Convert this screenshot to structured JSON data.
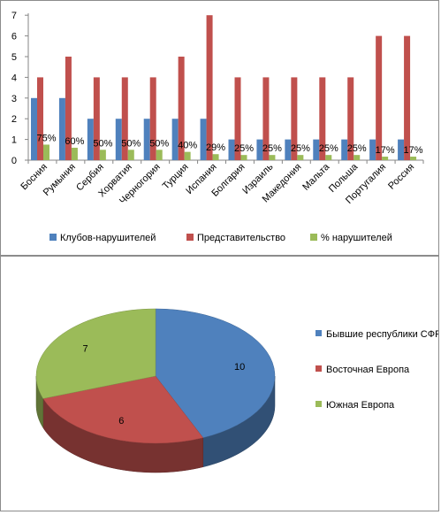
{
  "colors": {
    "clubs": "#4f81bd",
    "representation": "#c0504d",
    "percent": "#9bbb59",
    "pie_former_yu": "#4f81bd",
    "pie_east": "#c0504d",
    "pie_south": "#9bbb59"
  },
  "chart_data": [
    {
      "type": "bar",
      "categories": [
        "Босния",
        "Румыния",
        "Сербия",
        "Хорватия",
        "Черногория",
        "Турция",
        "Испания",
        "Болгария",
        "Израиль",
        "Македония",
        "Мальта",
        "Польша",
        "Португалия",
        "Россия"
      ],
      "series": [
        {
          "name": "Клубов-нарушителей",
          "values": [
            3,
            3,
            2,
            2,
            2,
            2,
            2,
            1,
            1,
            1,
            1,
            1,
            1,
            1
          ]
        },
        {
          "name": "Представительство",
          "values": [
            4,
            5,
            4,
            4,
            4,
            5,
            7,
            4,
            4,
            4,
            4,
            4,
            6,
            6
          ]
        },
        {
          "name": "% нарушителей",
          "values": [
            0.75,
            0.6,
            0.5,
            0.5,
            0.5,
            0.4,
            0.29,
            0.25,
            0.25,
            0.25,
            0.25,
            0.25,
            0.17,
            0.17
          ]
        }
      ],
      "data_labels": [
        "75%",
        "60%",
        "50%",
        "50%",
        "50%",
        "40%",
        "29%",
        "25%",
        "25%",
        "25%",
        "25%",
        "25%",
        "17%",
        "17%"
      ],
      "yticks": [
        "0",
        "1",
        "2",
        "3",
        "4",
        "5",
        "6",
        "7"
      ],
      "ylim": [
        0,
        7
      ],
      "grid": false,
      "legend_position": "bottom",
      "title": "",
      "xlabel": "",
      "ylabel": ""
    },
    {
      "type": "pie",
      "categories": [
        "Бывшие республики СФРЮ",
        "Восточная Европа",
        "Южная Европа"
      ],
      "values": [
        10,
        6,
        7
      ],
      "data_labels": [
        "10",
        "6",
        "7"
      ],
      "legend_position": "right",
      "title": ""
    }
  ]
}
